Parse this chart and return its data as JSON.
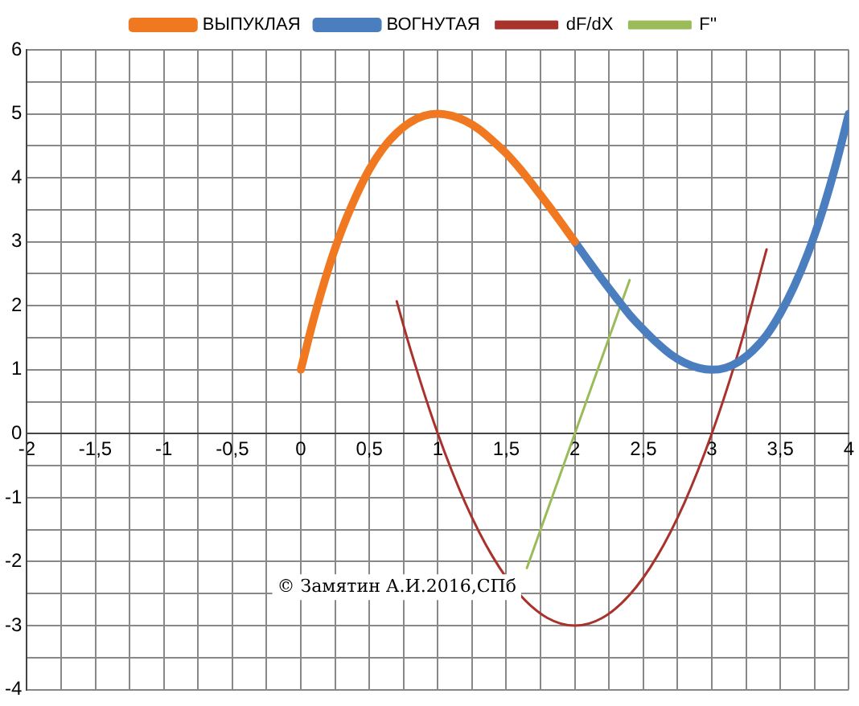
{
  "chart_data": {
    "type": "line",
    "legend": "top",
    "grid": true,
    "marker": "none",
    "line_style": "solid",
    "xlim": [
      -2,
      4
    ],
    "ylim": [
      -4,
      6
    ],
    "xticks": [
      -2,
      {
        "value": -1.75,
        "label": null
      },
      {
        "value": -1.5,
        "label": "-1,5"
      },
      {
        "value": -1.25,
        "label": null
      },
      -1,
      {
        "value": -0.75,
        "label": null
      },
      {
        "value": -0.5,
        "label": "-0,5"
      },
      {
        "value": -0.25,
        "label": null
      },
      0,
      {
        "value": 0.25,
        "label": null
      },
      {
        "value": 0.5,
        "label": "0,5"
      },
      {
        "value": 0.75,
        "label": null
      },
      1,
      {
        "value": 1.25,
        "label": null
      },
      {
        "value": 1.5,
        "label": "1,5"
      },
      {
        "value": 1.75,
        "label": null
      },
      2,
      {
        "value": 2.25,
        "label": null
      },
      {
        "value": 2.5,
        "label": "2,5"
      },
      {
        "value": 2.75,
        "label": null
      },
      3,
      {
        "value": 3.25,
        "label": null
      },
      {
        "value": 3.5,
        "label": "3,5"
      },
      {
        "value": 3.75,
        "label": null
      },
      4
    ],
    "yticks": [
      -4,
      {
        "value": -3.5,
        "label": null
      },
      -3,
      {
        "value": -2.5,
        "label": null
      },
      -2,
      {
        "value": -1.5,
        "label": null
      },
      -1,
      {
        "value": -0.5,
        "label": null
      },
      0,
      {
        "value": 0.5,
        "label": null
      },
      1,
      {
        "value": 1.5,
        "label": null
      },
      2,
      {
        "value": 2.5,
        "label": null
      },
      3,
      {
        "value": 3.5,
        "label": null
      },
      4,
      {
        "value": 4.5,
        "label": null
      },
      5,
      {
        "value": 5.5,
        "label": null
      },
      6
    ],
    "annotations": [
      "© Замятин А.И.2016,СПб"
    ],
    "series": [
      {
        "name": "ВЫПУКЛАЯ",
        "color": "#f07820",
        "x": [
          0,
          0.1,
          0.2,
          0.3,
          0.4,
          0.5,
          0.6,
          0.7,
          0.8,
          0.9,
          1,
          1.1,
          1.2,
          1.3,
          1.4,
          1.5,
          1.6,
          1.7,
          1.8,
          1.9,
          2
        ],
        "values": [
          1,
          1.84,
          2.57,
          3.19,
          3.7,
          4.13,
          4.46,
          4.7,
          4.87,
          4.97,
          5,
          4.97,
          4.89,
          4.76,
          4.58,
          4.38,
          4.14,
          3.87,
          3.59,
          3.3,
          3
        ]
      },
      {
        "name": "ВОГНУТАЯ",
        "color": "#4a7ebf",
        "x": [
          2,
          2.1,
          2.2,
          2.3,
          2.4,
          2.5,
          2.6,
          2.7,
          2.8,
          2.9,
          3,
          3.1,
          3.2,
          3.3,
          3.4,
          3.5,
          3.6,
          3.7,
          3.8,
          3.9,
          4
        ],
        "values": [
          3,
          2.7,
          2.41,
          2.13,
          1.86,
          1.63,
          1.42,
          1.24,
          1.11,
          1.03,
          1,
          1.03,
          1.13,
          1.3,
          1.54,
          1.88,
          2.3,
          2.81,
          3.43,
          4.16,
          5
        ]
      },
      {
        "name": "dF/dX",
        "color": "#a8322c",
        "x": [
          0.7,
          0.8,
          1,
          1.2,
          1.4,
          1.6,
          1.8,
          2,
          2.2,
          2.4,
          2.6,
          2.8,
          3,
          3.2,
          3.4
        ],
        "values": [
          2.07,
          1.32,
          0,
          -1.08,
          -1.92,
          -2.52,
          -2.88,
          -3,
          -2.88,
          -2.52,
          -1.92,
          -1.08,
          0,
          1.32,
          2.88
        ]
      },
      {
        "name": "F''",
        "color": "#9bbb59",
        "x": [
          1.65,
          2,
          2.4
        ],
        "values": [
          -2.1,
          0,
          2.4
        ]
      }
    ]
  }
}
